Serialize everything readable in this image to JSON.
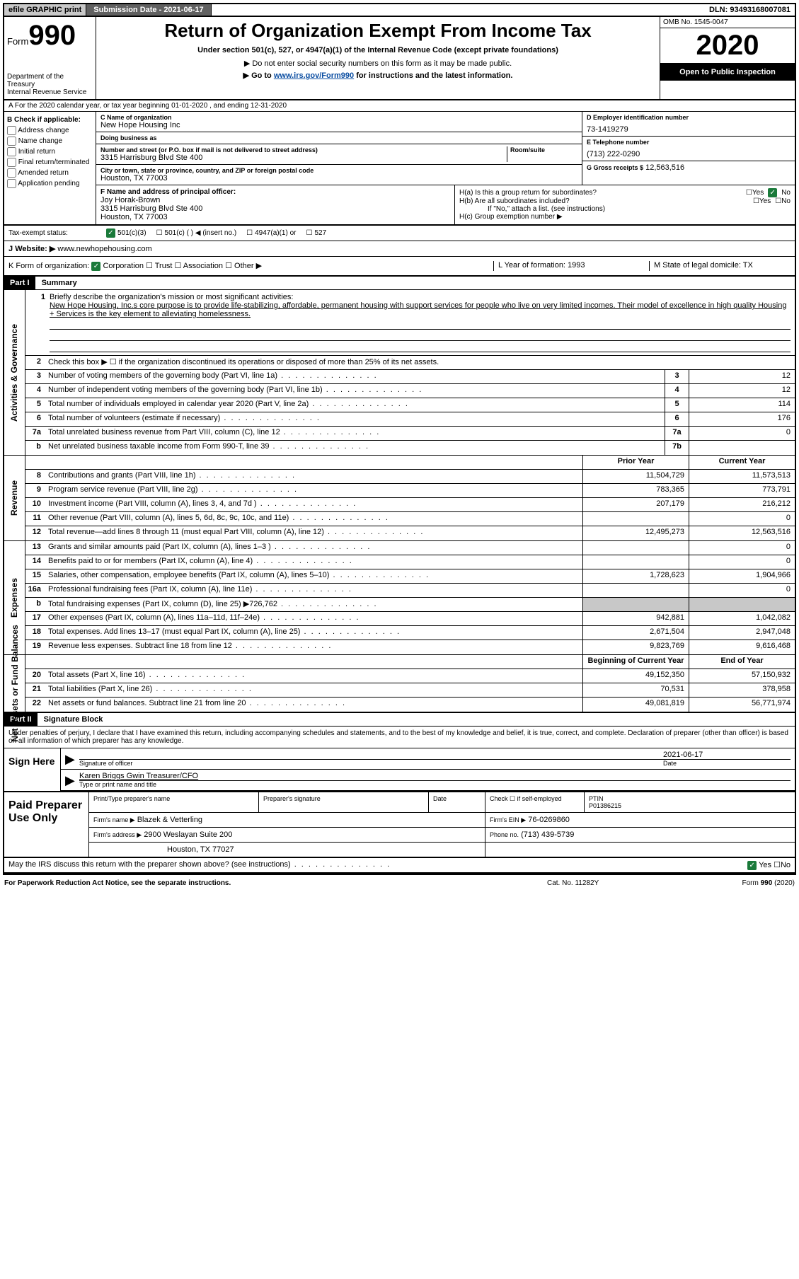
{
  "topbar": {
    "efile": "efile GRAPHIC print",
    "submission_label": "Submission Date - 2021-06-17",
    "dln": "DLN: 93493168007081"
  },
  "header": {
    "form_prefix": "Form",
    "form_number": "990",
    "dept": "Department of the Treasury\nInternal Revenue Service",
    "title": "Return of Organization Exempt From Income Tax",
    "sub1": "Under section 501(c), 527, or 4947(a)(1) of the Internal Revenue Code (except private foundations)",
    "sub2": "▶ Do not enter social security numbers on this form as it may be made public.",
    "sub3_pre": "▶ Go to ",
    "sub3_link": "www.irs.gov/Form990",
    "sub3_post": " for instructions and the latest information.",
    "omb": "OMB No. 1545-0047",
    "year": "2020",
    "open": "Open to Public Inspection"
  },
  "rowA": "A For the 2020 calendar year, or tax year beginning 01-01-2020   , and ending 12-31-2020",
  "boxB": {
    "label": "B Check if applicable:",
    "opts": [
      "Address change",
      "Name change",
      "Initial return",
      "Final return/terminated",
      "Amended return",
      "Application pending"
    ]
  },
  "boxC": {
    "name_label": "C Name of organization",
    "name": "New Hope Housing Inc",
    "dba_label": "Doing business as",
    "dba": "",
    "addr_label": "Number and street (or P.O. box if mail is not delivered to street address)",
    "room_label": "Room/suite",
    "addr": "3315 Harrisburg Blvd Ste 400",
    "city_label": "City or town, state or province, country, and ZIP or foreign postal code",
    "city": "Houston, TX  77003"
  },
  "boxD": {
    "label": "D Employer identification number",
    "val": "73-1419279"
  },
  "boxE": {
    "label": "E Telephone number",
    "val": "(713) 222-0290"
  },
  "boxG": {
    "label": "G Gross receipts $",
    "val": "12,563,516"
  },
  "boxF": {
    "label": "F  Name and address of principal officer:",
    "name": "Joy Horak-Brown",
    "addr1": "3315 Harrisburg Blvd Ste 400",
    "addr2": "Houston, TX  77003"
  },
  "boxH": {
    "ha": "H(a)  Is this a group return for subordinates?",
    "ha_yes": "Yes",
    "ha_no": "No",
    "hb": "H(b)  Are all subordinates included?",
    "hb_note": "If \"No,\" attach a list. (see instructions)",
    "hc": "H(c)  Group exemption number ▶"
  },
  "taxexempt": {
    "label": "Tax-exempt status:",
    "o1": "501(c)(3)",
    "o2": "501(c) (  ) ◀ (insert no.)",
    "o3": "4947(a)(1) or",
    "o4": "527"
  },
  "rowJ": {
    "label": "J",
    "website_label": "Website: ▶",
    "website": "www.newhopehousing.com"
  },
  "rowK": {
    "label": "K Form of organization:",
    "opts": [
      "Corporation",
      "Trust",
      "Association",
      "Other ▶"
    ],
    "L": "L Year of formation: 1993",
    "M": "M State of legal domicile: TX"
  },
  "part1": {
    "bar": "Part I",
    "title": "Summary"
  },
  "mission": {
    "n": "1",
    "label": "Briefly describe the organization's mission or most significant activities:",
    "text": "New Hope Housing, Inc.s core purpose is to provide life-stabilizing, affordable, permanent housing with support services for people who live on very limited incomes. Their model of excellence in high quality Housing + Services is the key element to alleviating homelessness."
  },
  "line2": "Check this box ▶ ☐  if the organization discontinued its operations or disposed of more than 25% of its net assets.",
  "activities_governance_label": "Activities & Governance",
  "revenue_label": "Revenue",
  "expenses_label": "Expenses",
  "netassets_label": "Net Assets or Fund Balances",
  "ag_rows": [
    {
      "n": "3",
      "t": "Number of voting members of the governing body (Part VI, line 1a)",
      "bn": "3",
      "v": "12"
    },
    {
      "n": "4",
      "t": "Number of independent voting members of the governing body (Part VI, line 1b)",
      "bn": "4",
      "v": "12"
    },
    {
      "n": "5",
      "t": "Total number of individuals employed in calendar year 2020 (Part V, line 2a)",
      "bn": "5",
      "v": "114"
    },
    {
      "n": "6",
      "t": "Total number of volunteers (estimate if necessary)",
      "bn": "6",
      "v": "176"
    },
    {
      "n": "7a",
      "t": "Total unrelated business revenue from Part VIII, column (C), line 12",
      "bn": "7a",
      "v": "0"
    },
    {
      "n": "b",
      "t": "Net unrelated business taxable income from Form 990-T, line 39",
      "bn": "7b",
      "v": ""
    }
  ],
  "colhdr": {
    "prior": "Prior Year",
    "current": "Current Year"
  },
  "rev_rows": [
    {
      "n": "8",
      "t": "Contributions and grants (Part VIII, line 1h)",
      "py": "11,504,729",
      "cy": "11,573,513"
    },
    {
      "n": "9",
      "t": "Program service revenue (Part VIII, line 2g)",
      "py": "783,365",
      "cy": "773,791"
    },
    {
      "n": "10",
      "t": "Investment income (Part VIII, column (A), lines 3, 4, and 7d )",
      "py": "207,179",
      "cy": "216,212"
    },
    {
      "n": "11",
      "t": "Other revenue (Part VIII, column (A), lines 5, 6d, 8c, 9c, 10c, and 11e)",
      "py": "",
      "cy": "0"
    },
    {
      "n": "12",
      "t": "Total revenue—add lines 8 through 11 (must equal Part VIII, column (A), line 12)",
      "py": "12,495,273",
      "cy": "12,563,516"
    }
  ],
  "exp_rows": [
    {
      "n": "13",
      "t": "Grants and similar amounts paid (Part IX, column (A), lines 1–3 )",
      "py": "",
      "cy": "0"
    },
    {
      "n": "14",
      "t": "Benefits paid to or for members (Part IX, column (A), line 4)",
      "py": "",
      "cy": "0"
    },
    {
      "n": "15",
      "t": "Salaries, other compensation, employee benefits (Part IX, column (A), lines 5–10)",
      "py": "1,728,623",
      "cy": "1,904,966"
    },
    {
      "n": "16a",
      "t": "Professional fundraising fees (Part IX, column (A), line 11e)",
      "py": "",
      "cy": "0"
    },
    {
      "n": "b",
      "t": "Total fundraising expenses (Part IX, column (D), line 25) ▶726,762",
      "py": "GREY",
      "cy": "GREY"
    },
    {
      "n": "17",
      "t": "Other expenses (Part IX, column (A), lines 11a–11d, 11f–24e)",
      "py": "942,881",
      "cy": "1,042,082"
    },
    {
      "n": "18",
      "t": "Total expenses. Add lines 13–17 (must equal Part IX, column (A), line 25)",
      "py": "2,671,504",
      "cy": "2,947,048"
    },
    {
      "n": "19",
      "t": "Revenue less expenses. Subtract line 18 from line 12",
      "py": "9,823,769",
      "cy": "9,616,468"
    }
  ],
  "colhdr2": {
    "begin": "Beginning of Current Year",
    "end": "End of Year"
  },
  "na_rows": [
    {
      "n": "20",
      "t": "Total assets (Part X, line 16)",
      "py": "49,152,350",
      "cy": "57,150,932"
    },
    {
      "n": "21",
      "t": "Total liabilities (Part X, line 26)",
      "py": "70,531",
      "cy": "378,958"
    },
    {
      "n": "22",
      "t": "Net assets or fund balances. Subtract line 21 from line 20",
      "py": "49,081,819",
      "cy": "56,771,974"
    }
  ],
  "part2": {
    "bar": "Part II",
    "title": "Signature Block"
  },
  "decl": "Under penalties of perjury, I declare that I have examined this return, including accompanying schedules and statements, and to the best of my knowledge and belief, it is true, correct, and complete. Declaration of preparer (other than officer) is based on all information of which preparer has any knowledge.",
  "sign": {
    "here": "Sign Here",
    "sig_lbl": "Signature of officer",
    "date_lbl": "Date",
    "date": "2021-06-17",
    "name": "Karen Briggs Gwin  Treasurer/CFO",
    "name_lbl": "Type or print name and title"
  },
  "prep": {
    "label": "Paid Preparer Use Only",
    "r1": {
      "c1": "Print/Type preparer's name",
      "c2": "Preparer's signature",
      "c3": "Date",
      "c4": "Check ☐  if self-employed",
      "c5": "PTIN",
      "ptin": "P01386215"
    },
    "r2": {
      "c1": "Firm's name     ▶",
      "firm": "Blazek & Vetterling",
      "c2": "Firm's EIN ▶",
      "ein": "76-0269860"
    },
    "r3": {
      "c1": "Firm's address ▶",
      "addr": "2900 Weslayan Suite 200",
      "c2": "Phone no.",
      "phone": "(713) 439-5739"
    },
    "r4": {
      "city": "Houston, TX  77027"
    }
  },
  "discuss": {
    "t": "May the IRS discuss this return with the preparer shown above? (see instructions)",
    "yes": "Yes",
    "no": "No"
  },
  "footer": {
    "l": "For Paperwork Reduction Act Notice, see the separate instructions.",
    "m": "Cat. No. 11282Y",
    "r": "Form 990 (2020)"
  }
}
